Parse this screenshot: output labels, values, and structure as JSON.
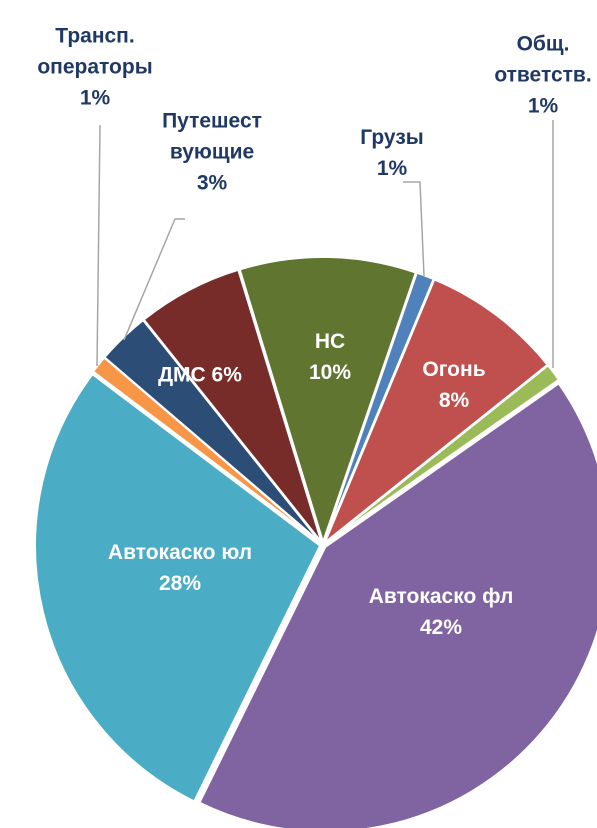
{
  "chart_data": {
    "type": "pie",
    "categories": [
      "Грузы",
      "Огонь",
      "Общ.\nответств.",
      "Автокаско фл",
      "Автокаско юл",
      "Трансп.\nоператоры",
      "Путешест\nвующие",
      "ДМС",
      "НС"
    ],
    "values": [
      1,
      8,
      1,
      42,
      28,
      1,
      3,
      6,
      10
    ],
    "value_labels": [
      "1%",
      "8%",
      "1%",
      "42%",
      "28%",
      "1%",
      "3%",
      "6%",
      "10%"
    ],
    "colors": [
      "#4f81bd",
      "#c0504d",
      "#9bbb59",
      "#8064a2",
      "#4bacc6",
      "#f79646",
      "#2c4d75",
      "#772c2a",
      "#5f7530"
    ]
  }
}
